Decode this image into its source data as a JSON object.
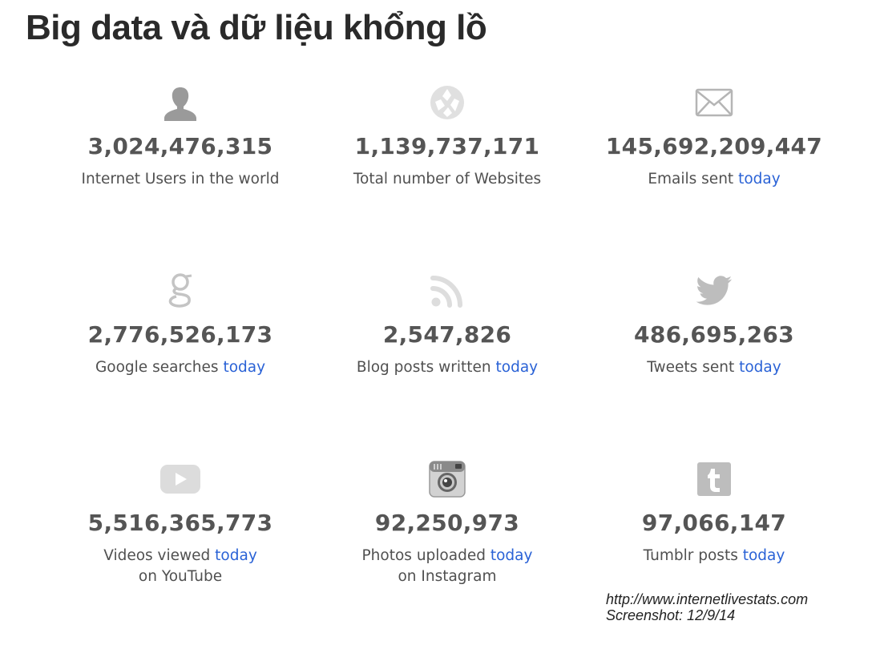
{
  "title": "Big data và dữ liệu khổng lồ",
  "colors": {
    "icon": "#9a9a9a",
    "number": "#555555",
    "label": "#505050",
    "accent": "#2a62d6"
  },
  "stats": [
    {
      "icon": "user-icon",
      "number": "3,024,476,315",
      "label": "Internet Users in the world",
      "today": "",
      "label2": ""
    },
    {
      "icon": "globe-icon",
      "number": "1,139,737,171",
      "label": "Total number of Websites",
      "today": "",
      "label2": ""
    },
    {
      "icon": "envelope-icon",
      "number": "145,692,209,447",
      "label": "Emails sent ",
      "today": "today",
      "label2": ""
    },
    {
      "icon": "google-icon",
      "number": "2,776,526,173",
      "label": "Google searches ",
      "today": "today",
      "label2": ""
    },
    {
      "icon": "rss-icon",
      "number": "2,547,826",
      "label": "Blog posts written ",
      "today": "today",
      "label2": ""
    },
    {
      "icon": "twitter-icon",
      "number": "486,695,263",
      "label": "Tweets sent ",
      "today": "today",
      "label2": ""
    },
    {
      "icon": "youtube-icon",
      "number": "5,516,365,773",
      "label": "Videos viewed ",
      "today": "today",
      "label2": "on YouTube"
    },
    {
      "icon": "instagram-icon",
      "number": "92,250,973",
      "label": "Photos uploaded ",
      "today": "today",
      "label2": "on Instagram"
    },
    {
      "icon": "tumblr-icon",
      "number": "97,066,147",
      "label": "Tumblr posts ",
      "today": "today",
      "label2": ""
    }
  ],
  "source": {
    "url": "http://www.internetlivestats.com",
    "note": "Screenshot: 12/9/14"
  }
}
